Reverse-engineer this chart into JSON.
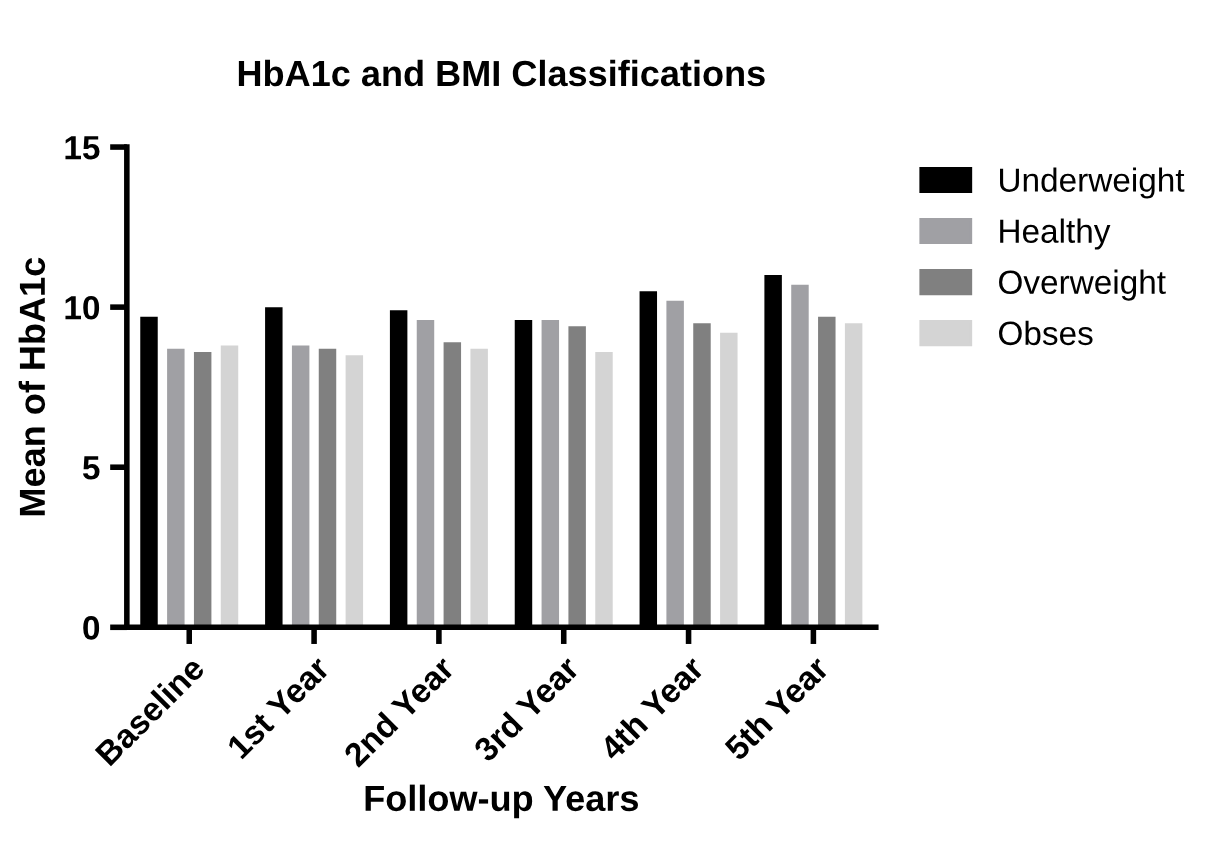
{
  "chart_data": {
    "type": "bar",
    "title": "HbA1c and BMI Classifications",
    "xlabel": "Follow-up Years",
    "ylabel": "Mean of HbA1c",
    "categories": [
      "Baseline",
      "1st Year",
      "2nd Year",
      "3rd Year",
      "4th Year",
      "5th Year"
    ],
    "series": [
      {
        "name": "Underweight",
        "color": "#000000",
        "values": [
          9.7,
          10.0,
          9.9,
          9.6,
          10.5,
          11.0
        ]
      },
      {
        "name": "Healthy",
        "color": "#a0a0a4",
        "values": [
          8.7,
          8.8,
          9.6,
          9.6,
          10.2,
          10.7
        ]
      },
      {
        "name": "Overweight",
        "color": "#808080",
        "values": [
          8.6,
          8.7,
          8.9,
          9.4,
          9.5,
          9.7
        ]
      },
      {
        "name": "Obses",
        "color": "#d4d4d4",
        "values": [
          8.8,
          8.5,
          8.7,
          8.6,
          9.2,
          9.5
        ]
      }
    ],
    "ylim": [
      0,
      15
    ],
    "yticks": [
      0,
      5,
      10,
      15
    ],
    "grid": false,
    "legend": "right"
  }
}
